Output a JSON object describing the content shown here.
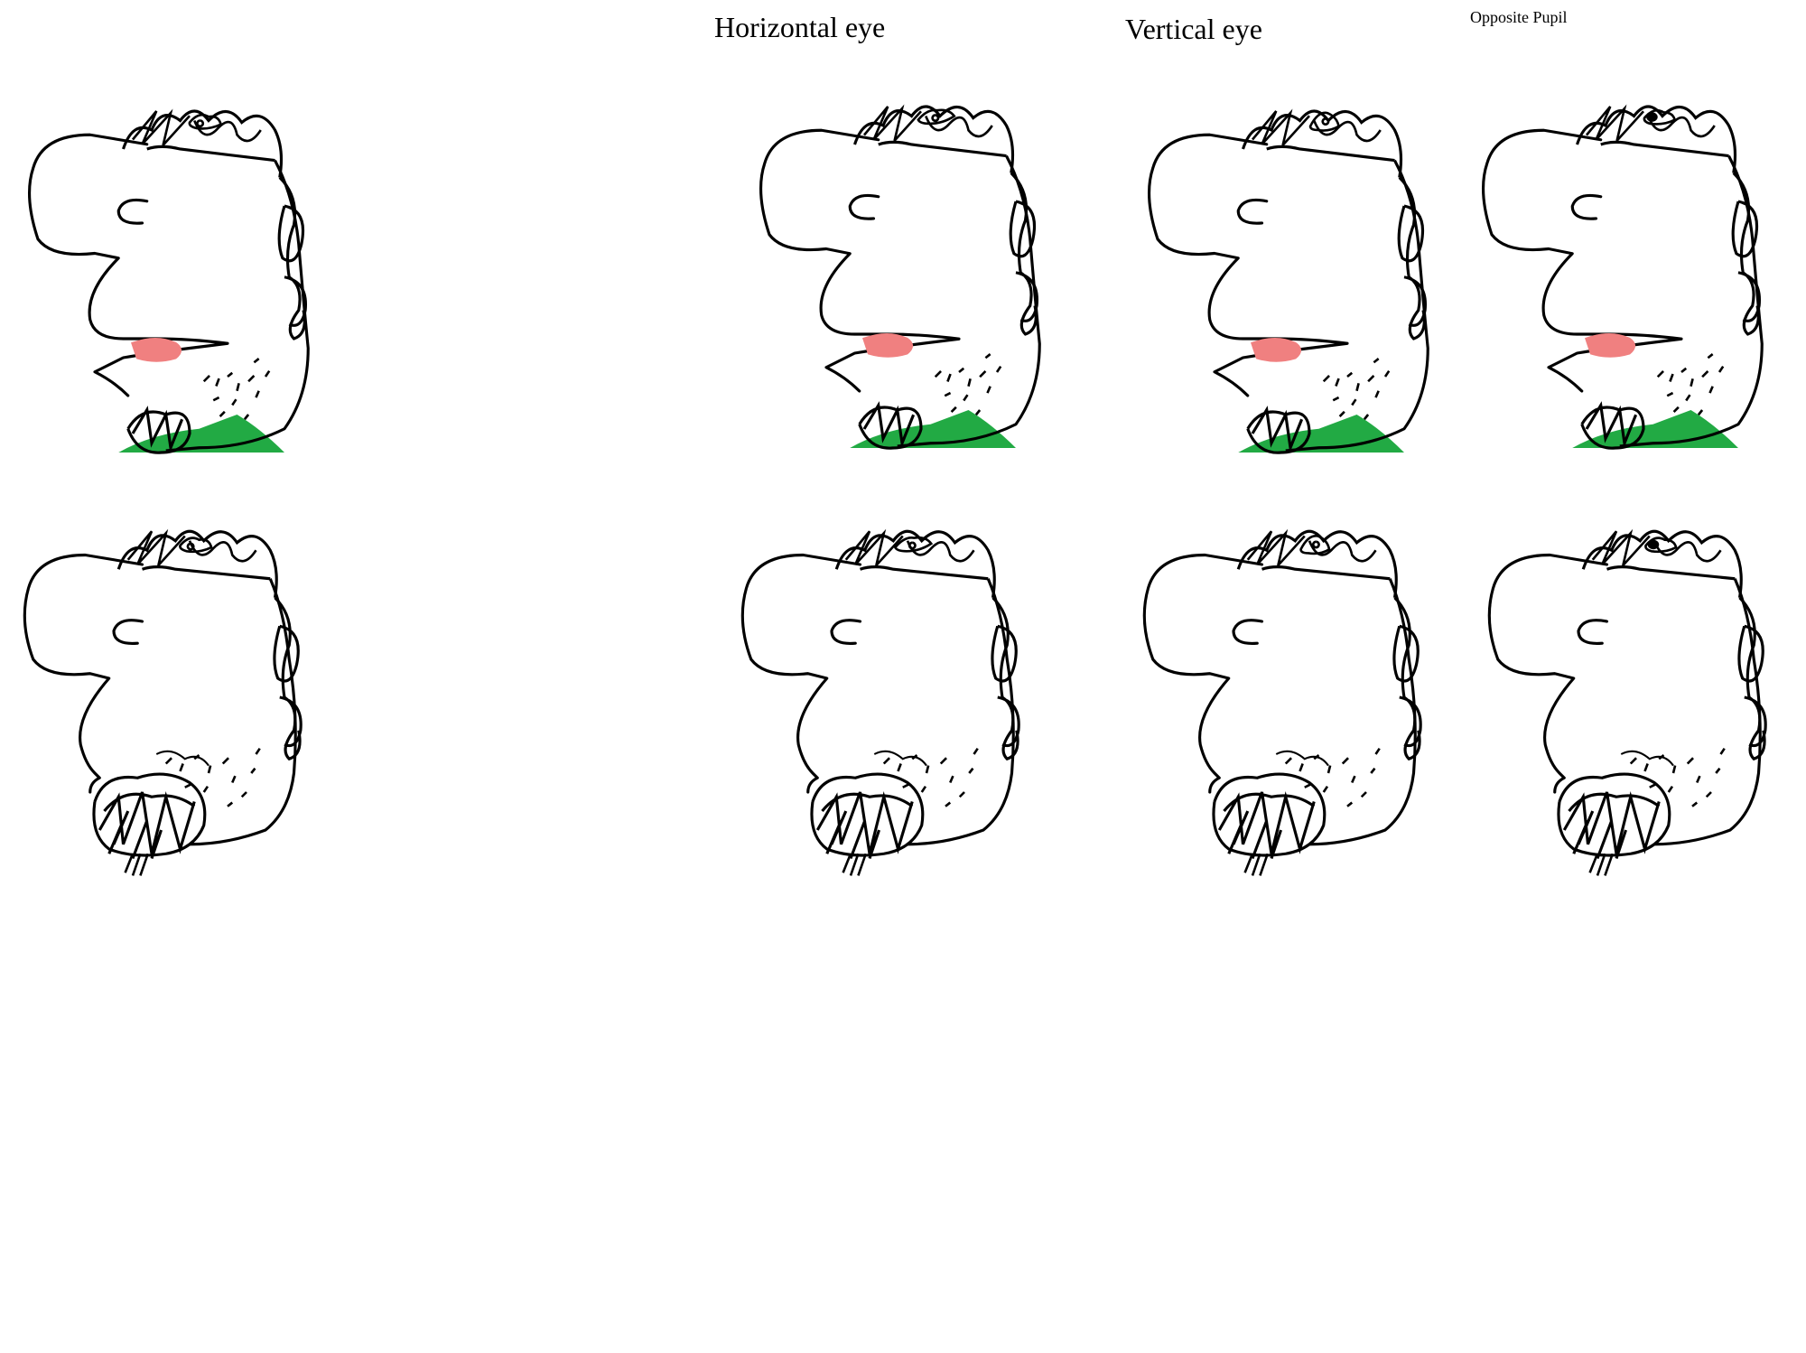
{
  "labels": {
    "horizontal_eye": "Horizontal eye",
    "vertical_eye": "Vertical eye",
    "opposite_pupil": "Opposite Pupil"
  },
  "colors": {
    "background": "#ffffff",
    "ink": "#000000",
    "tongue": "#f08080",
    "shirt": "#22aa44"
  },
  "variants": [
    {
      "row": "clean-shaven",
      "column": "original",
      "eye": "normal"
    },
    {
      "row": "clean-shaven",
      "column": "horizontal-eye",
      "eye": "horizontal"
    },
    {
      "row": "clean-shaven",
      "column": "vertical-eye",
      "eye": "vertical"
    },
    {
      "row": "clean-shaven",
      "column": "opposite-pupil",
      "eye": "opposite"
    },
    {
      "row": "bearded",
      "column": "original",
      "eye": "normal"
    },
    {
      "row": "bearded",
      "column": "horizontal-eye",
      "eye": "horizontal"
    },
    {
      "row": "bearded",
      "column": "vertical-eye",
      "eye": "vertical"
    },
    {
      "row": "bearded",
      "column": "opposite-pupil",
      "eye": "opposite"
    }
  ]
}
